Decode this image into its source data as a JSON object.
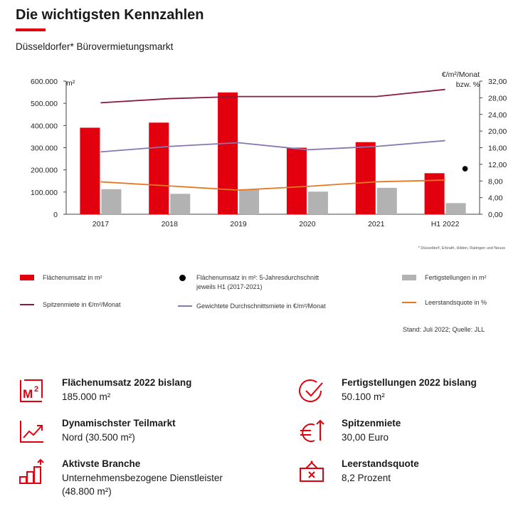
{
  "page": {
    "title": "Die wichtigsten Kennzahlen",
    "subtitle": "Düsseldorfer*  Bürovermietungsmarkt",
    "footnote": "* Düsseldorf, Erkrath, Hilden, Ratingen und Neuss",
    "source": "Stand: Juli 2022; Quelle: JLL"
  },
  "colors": {
    "accent": "#e2000f",
    "bar_gray": "#b2b2b2",
    "spitzen": "#8c1a3c",
    "durchschnitt": "#8878b0",
    "leerstand": "#e87722",
    "icon_red": "#e2000f"
  },
  "chart_data": {
    "type": "bar",
    "categories": [
      "2017",
      "2018",
      "2019",
      "2020",
      "2021",
      "H1 2022"
    ],
    "left_axis": {
      "unit_label": "m²",
      "ylim": [
        0,
        600000
      ],
      "ticks": [
        "0",
        "100.000",
        "200.000",
        "300.000",
        "400.000",
        "500.000",
        "600.000"
      ]
    },
    "right_axis": {
      "unit_label_line1": "€/m²/Monat",
      "unit_label_line2": "bzw. %",
      "ylim": [
        0,
        32
      ],
      "ticks": [
        "0,00",
        "4,00",
        "8,00",
        "12,00",
        "16,00",
        "20,00",
        "24,00",
        "28,00",
        "32,00"
      ]
    },
    "series": [
      {
        "name": "Flächenumsatz in m²",
        "type": "bar",
        "axis": "left",
        "values": [
          390000,
          413000,
          549000,
          300000,
          325000,
          185000
        ]
      },
      {
        "name": "Fertigstellungen in m²",
        "type": "bar",
        "axis": "left",
        "values": [
          113000,
          92000,
          113000,
          102000,
          119000,
          50100
        ]
      },
      {
        "name": "Spitzenmiete in €/m²/Monat",
        "type": "line",
        "axis": "right",
        "values": [
          26.8,
          27.8,
          28.3,
          28.3,
          28.3,
          30.0
        ]
      },
      {
        "name": "Gewichtete Durchschnittsmiete in €/m²/Monat",
        "type": "line",
        "axis": "right",
        "values": [
          15.0,
          16.3,
          17.2,
          15.5,
          16.3,
          17.7
        ]
      },
      {
        "name": "Leerstandsquote in %",
        "type": "line",
        "axis": "right",
        "values": [
          7.8,
          6.8,
          5.8,
          6.7,
          7.8,
          8.2
        ]
      },
      {
        "name": "Flächenumsatz in m²: 5-Jahresdurchschnitt jeweils H1 (2017-2021)",
        "type": "point",
        "axis": "left",
        "category": "H1 2022",
        "value": 205000
      }
    ],
    "legend": {
      "flaechen": "Flächenumsatz in m²",
      "schnitt_line1": "Flächenumsatz in m²: 5-Jahresdurchschnitt",
      "schnitt_line2": "jeweils H1 (2017-2021)",
      "fertig": "Fertigstellungen in m²",
      "spitzen": "Spitzenmiete in €/m²/Monat",
      "durchschnitt": "Gewichtete Durchschnittsmiete in €/m²/Monat",
      "leerstand": "Leerstandsquote in %"
    }
  },
  "kpis": [
    {
      "icon": "m2-icon",
      "title": "Flächenumsatz 2022 bislang",
      "value": "185.000  m²"
    },
    {
      "icon": "trend-up-icon",
      "title": "Dynamischster Teilmarkt",
      "value": "Nord (30.500  m²)"
    },
    {
      "icon": "bar-growth-icon",
      "title": "Aktivste Branche",
      "value": "Unternehmensbezogene   Dienstleister",
      "value2": "(48.800  m²)"
    },
    {
      "icon": "checkmark-circle-icon",
      "title": "Fertigstellungen 2022 bislang",
      "value": "50.100  m²"
    },
    {
      "icon": "euro-up-icon",
      "title": "Spitzenmiete",
      "value": "30,00  Euro"
    },
    {
      "icon": "vacancy-sign-icon",
      "title": "Leerstandsquote",
      "value": "8,2 Prozent"
    }
  ]
}
